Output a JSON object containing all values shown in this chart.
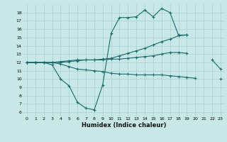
{
  "x": [
    0,
    1,
    2,
    3,
    4,
    5,
    6,
    7,
    8,
    9,
    10,
    11,
    12,
    13,
    14,
    15,
    16,
    17,
    18,
    19,
    20,
    21,
    22,
    23
  ],
  "line1": [
    12,
    12,
    12,
    11.7,
    10.0,
    9.2,
    7.2,
    6.5,
    6.3,
    9.3,
    15.5,
    17.4,
    17.4,
    17.5,
    18.3,
    17.5,
    18.5,
    18.0,
    15.3,
    15.3,
    null,
    null,
    12.3,
    11.2
  ],
  "line2": [
    12,
    12,
    12,
    12,
    12.0,
    12.1,
    12.2,
    12.3,
    12.3,
    12.4,
    12.5,
    12.8,
    13.1,
    13.4,
    13.7,
    14.1,
    14.5,
    14.8,
    15.2,
    15.3,
    null,
    null,
    null,
    null
  ],
  "line3": [
    12,
    12,
    12,
    12,
    11.8,
    11.5,
    11.2,
    11.1,
    11.0,
    10.9,
    10.7,
    10.6,
    10.6,
    10.5,
    10.5,
    10.5,
    10.5,
    10.4,
    10.3,
    10.2,
    10.1,
    null,
    null,
    10.0
  ],
  "line4": [
    12,
    12,
    12,
    12,
    12.1,
    12.2,
    12.3,
    12.3,
    12.3,
    12.3,
    12.4,
    12.4,
    12.5,
    12.6,
    12.7,
    12.8,
    13.0,
    13.2,
    13.2,
    13.1,
    null,
    null,
    null,
    null
  ],
  "color": "#1a6b6b",
  "bg_color": "#c8e8e8",
  "grid_color": "#aacece",
  "xlabel": "Humidex (Indice chaleur)",
  "xlim": [
    -0.5,
    23.5
  ],
  "ylim": [
    5.5,
    19
  ],
  "yticks": [
    6,
    7,
    8,
    9,
    10,
    11,
    12,
    13,
    14,
    15,
    16,
    17,
    18
  ],
  "xticks": [
    0,
    1,
    2,
    3,
    4,
    5,
    6,
    7,
    8,
    9,
    10,
    11,
    12,
    13,
    14,
    15,
    16,
    17,
    18,
    19,
    20,
    21,
    22,
    23
  ],
  "marker": "+"
}
